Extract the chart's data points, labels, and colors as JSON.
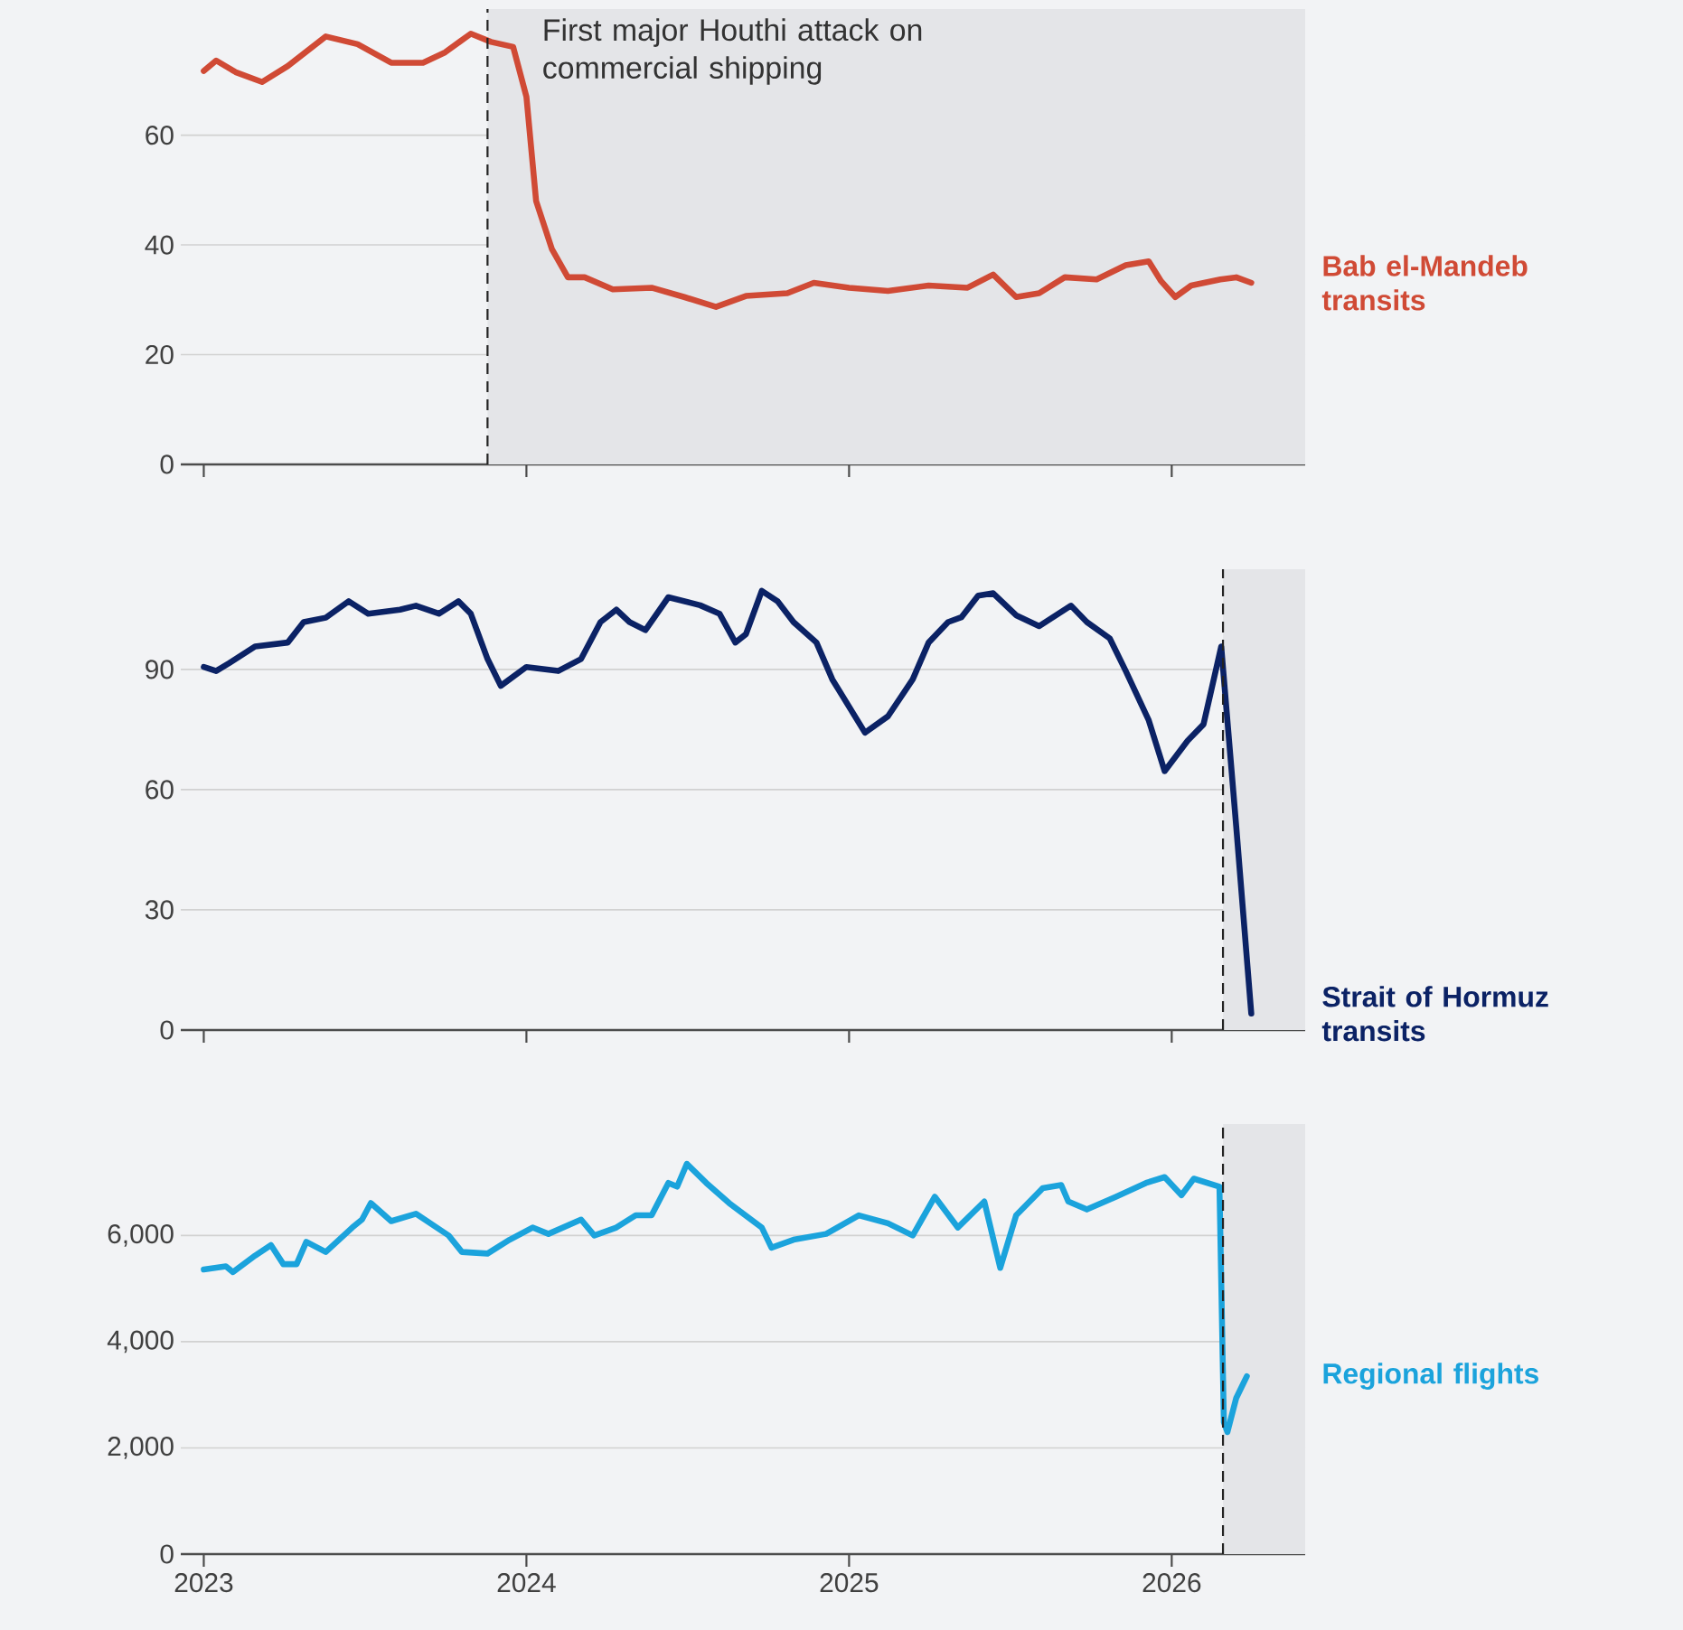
{
  "chart_data": [
    {
      "type": "line",
      "xlim": [
        "2022-12-06",
        "2026-06-01"
      ],
      "xticks": [
        "2023",
        "2024",
        "2025",
        "2026"
      ],
      "ylim": [
        0,
        83
      ],
      "yticks": [
        0,
        20,
        40,
        60
      ],
      "grid": "y",
      "tick_labels": "y",
      "x": [
        "2023-01-01",
        "2023-01-15",
        "2023-02-06",
        "2023-03-08",
        "2023-04-06",
        "2023-05-19",
        "2023-06-24",
        "2023-08-01",
        "2023-09-06",
        "2023-10-01",
        "2023-10-30",
        "2023-11-22",
        "2023-12-17",
        "2024-01-01",
        "2024-01-12",
        "2024-01-30",
        "2024-02-17",
        "2024-03-07",
        "2024-04-08",
        "2024-05-22",
        "2024-06-28",
        "2024-08-03",
        "2024-09-06",
        "2024-10-23",
        "2024-11-22",
        "2025-01-01",
        "2025-02-14",
        "2025-04-01",
        "2025-05-15",
        "2025-06-13",
        "2025-07-09",
        "2025-08-04",
        "2025-09-02",
        "2025-10-08",
        "2025-11-10",
        "2025-12-06",
        "2025-12-20",
        "2026-01-05",
        "2026-01-23",
        "2026-02-25",
        "2026-03-15",
        "2026-04-01"
      ],
      "series": [
        {
          "name": "Bab el-Mandeb transits",
          "color": "#d04a35",
          "values": [
            71.7,
            73.6,
            71.5,
            69.7,
            72.6,
            78,
            76.6,
            73.2,
            73.2,
            75.1,
            78.5,
            77,
            76.1,
            67,
            48,
            39.2,
            34.1,
            34.1,
            31.9,
            32.2,
            30.5,
            28.7,
            30.7,
            31.2,
            33.1,
            32.2,
            31.6,
            32.6,
            32.2,
            34.6,
            30.5,
            31.2,
            34.1,
            33.7,
            36.3,
            37,
            33.4,
            30.5,
            32.6,
            33.7,
            34.1,
            33.1
          ]
        }
      ],
      "bands": [
        {
          "axis": "x",
          "from": "2023-11-18",
          "to": "2026-06-01",
          "color": "#e4e5e8"
        }
      ],
      "ref_lines": [
        {
          "axis": "x",
          "value": "2023-11-18",
          "label": "First major Houthi attack on commercial shipping",
          "color": "#222222",
          "line_style": "dashed"
        }
      ]
    },
    {
      "type": "line",
      "xlim": [
        "2022-12-06",
        "2026-06-01"
      ],
      "xticks": [
        "2023",
        "2024",
        "2025",
        "2026"
      ],
      "ylim": [
        0,
        115
      ],
      "yticks": [
        0,
        30,
        60,
        90
      ],
      "grid": "y",
      "tick_labels": "y",
      "x": [
        "2023-01-01",
        "2023-01-15",
        "2023-01-30",
        "2023-02-28",
        "2023-04-06",
        "2023-04-24",
        "2023-05-19",
        "2023-06-14",
        "2023-07-06",
        "2023-08-11",
        "2023-08-29",
        "2023-09-24",
        "2023-10-16",
        "2023-10-30",
        "2023-11-18",
        "2023-12-03",
        "2024-01-01",
        "2024-02-06",
        "2024-03-03",
        "2024-03-25",
        "2024-04-12",
        "2024-04-27",
        "2024-05-15",
        "2024-06-10",
        "2024-07-16",
        "2024-08-07",
        "2024-08-25",
        "2024-09-06",
        "2024-09-24",
        "2024-10-12",
        "2024-10-30",
        "2024-11-25",
        "2024-12-13",
        "2025-01-19",
        "2025-02-14",
        "2025-03-14",
        "2025-04-01",
        "2025-04-23",
        "2025-05-08",
        "2025-05-27",
        "2025-06-13",
        "2025-07-09",
        "2025-08-04",
        "2025-09-09",
        "2025-09-27",
        "2025-10-23",
        "2025-11-10",
        "2025-12-06",
        "2025-12-24",
        "2026-01-19",
        "2026-02-06",
        "2026-02-26",
        "2026-03-15",
        "2026-04-01"
      ],
      "series": [
        {
          "name": "Strait of Hormuz transits",
          "color": "#0b2265",
          "values": [
            90.6,
            89.6,
            91.6,
            95.7,
            96.7,
            101.8,
            102.9,
            107,
            103.9,
            104.9,
            105.9,
            103.9,
            107,
            103.9,
            92.6,
            85.9,
            90.6,
            89.6,
            92.6,
            101.8,
            104.9,
            101.8,
            99.8,
            108,
            106,
            103.9,
            96.7,
            98.8,
            109.6,
            107,
            101.8,
            96.7,
            87.5,
            74.2,
            78.3,
            87.5,
            96.7,
            101.8,
            103,
            108.4,
            109,
            103.5,
            100.8,
            105.9,
            101.8,
            97.7,
            89.6,
            77.3,
            64.6,
            72.2,
            76.3,
            95.7,
            50.7,
            4.1
          ]
        }
      ],
      "bands": [
        {
          "axis": "x",
          "from": "2026-02-28",
          "to": "2026-06-01",
          "color": "#e4e5e8"
        }
      ],
      "ref_lines": [
        {
          "axis": "x",
          "value": "2026-02-28",
          "color": "#222222",
          "line_style": "dashed"
        }
      ]
    },
    {
      "type": "line",
      "xlim": [
        "2022-12-06",
        "2026-06-01"
      ],
      "xticks": [
        "2023",
        "2024",
        "2025",
        "2026"
      ],
      "ylim": [
        0,
        8100
      ],
      "yticks": [
        0,
        {
          "value": 2000,
          "label": "2,000"
        },
        {
          "value": 4000,
          "label": "4,000"
        },
        {
          "value": 6000,
          "label": "6,000"
        }
      ],
      "grid": "y",
      "x": [
        "2023-01-01",
        "2023-01-26",
        "2023-02-03",
        "2023-02-28",
        "2023-03-18",
        "2023-04-01",
        "2023-04-16",
        "2023-04-27",
        "2023-05-19",
        "2023-06-18",
        "2023-06-29",
        "2023-07-09",
        "2023-08-01",
        "2023-08-29",
        "2023-10-05",
        "2023-10-20",
        "2023-11-18",
        "2023-12-13",
        "2024-01-08",
        "2024-01-26",
        "2024-03-03",
        "2024-03-18",
        "2024-04-12",
        "2024-05-04",
        "2024-05-22",
        "2024-06-10",
        "2024-06-20",
        "2024-07-01",
        "2024-07-23",
        "2024-08-18",
        "2024-09-24",
        "2024-10-05",
        "2024-10-30",
        "2024-12-06",
        "2025-01-12",
        "2025-02-14",
        "2025-03-14",
        "2025-04-08",
        "2025-05-04",
        "2025-06-03",
        "2025-06-21",
        "2025-07-09",
        "2025-08-08",
        "2025-08-29",
        "2025-09-06",
        "2025-09-27",
        "2025-10-30",
        "2025-12-03",
        "2025-12-24",
        "2026-01-12",
        "2026-01-26",
        "2026-02-24",
        "2026-03-01",
        "2026-03-05",
        "2026-03-15",
        "2026-03-27"
      ],
      "series": [
        {
          "name": "Regional flights",
          "color": "#1ba3dc",
          "values": [
            5360,
            5420,
            5310,
            5620,
            5820,
            5460,
            5460,
            5880,
            5690,
            6150,
            6300,
            6610,
            6270,
            6410,
            6000,
            5690,
            5660,
            5920,
            6150,
            6030,
            6300,
            6000,
            6150,
            6380,
            6380,
            6990,
            6920,
            7350,
            6990,
            6610,
            6150,
            5770,
            5920,
            6030,
            6380,
            6230,
            6000,
            6730,
            6150,
            6640,
            5390,
            6380,
            6890,
            6950,
            6640,
            6490,
            6730,
            6990,
            7100,
            6760,
            7070,
            6920,
            2480,
            2300,
            2940,
            3350
          ]
        }
      ],
      "bands": [
        {
          "axis": "x",
          "from": "2026-02-28",
          "to": "2026-06-01",
          "color": "#e4e5e8"
        }
      ],
      "ref_lines": [
        {
          "axis": "x",
          "value": "2026-02-28",
          "color": "#222222",
          "line_style": "dashed"
        }
      ]
    }
  ]
}
